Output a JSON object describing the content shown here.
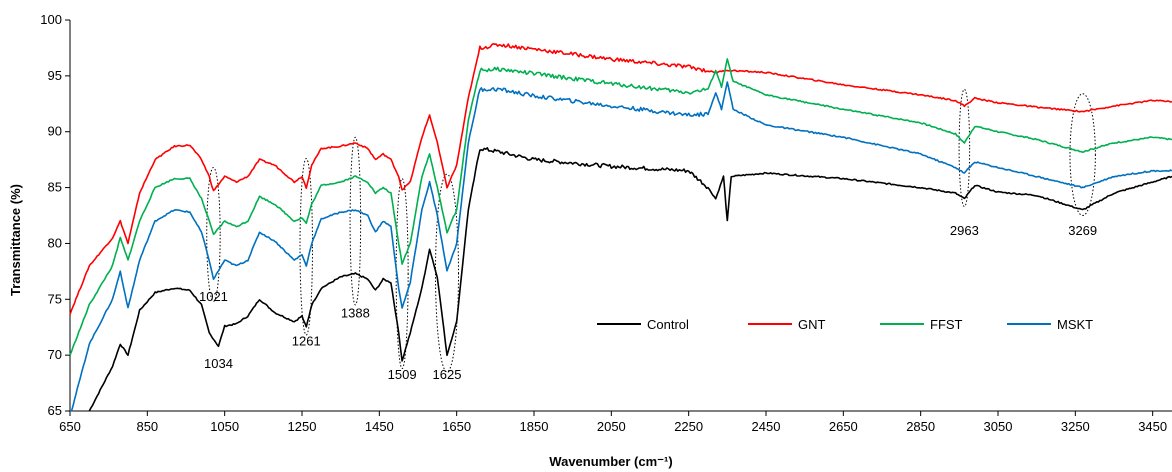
{
  "chart_data": {
    "type": "line",
    "title": "",
    "xlabel": "Wavenumber (cm⁻¹)",
    "ylabel": "Transmittance (%)",
    "xlim": [
      650,
      3500
    ],
    "ylim": [
      65,
      100
    ],
    "x_ticks": [
      650,
      850,
      1050,
      1250,
      1450,
      1650,
      1850,
      2050,
      2250,
      2450,
      2650,
      2850,
      3050,
      3250,
      3450
    ],
    "y_ticks": [
      65,
      70,
      75,
      80,
      85,
      90,
      95,
      100
    ],
    "grid": false,
    "legend_position": "right-center",
    "series": [
      {
        "name": "Control",
        "color": "#000000",
        "points": [
          [
            700,
            65
          ],
          [
            760,
            69
          ],
          [
            780,
            71
          ],
          [
            800,
            70
          ],
          [
            830,
            74
          ],
          [
            870,
            75.6
          ],
          [
            920,
            76
          ],
          [
            960,
            75.8
          ],
          [
            990,
            74.5
          ],
          [
            1010,
            72
          ],
          [
            1034,
            70.8
          ],
          [
            1050,
            72.6
          ],
          [
            1080,
            72.8
          ],
          [
            1110,
            73.5
          ],
          [
            1140,
            75
          ],
          [
            1180,
            73.8
          ],
          [
            1230,
            73
          ],
          [
            1250,
            73.5
          ],
          [
            1261,
            72.5
          ],
          [
            1275,
            74.5
          ],
          [
            1300,
            76
          ],
          [
            1350,
            77
          ],
          [
            1388,
            77.3
          ],
          [
            1420,
            76.8
          ],
          [
            1440,
            75.8
          ],
          [
            1460,
            76.8
          ],
          [
            1480,
            76.5
          ],
          [
            1500,
            72
          ],
          [
            1509,
            69.5
          ],
          [
            1530,
            72
          ],
          [
            1560,
            76
          ],
          [
            1580,
            79.5
          ],
          [
            1600,
            77
          ],
          [
            1625,
            70
          ],
          [
            1650,
            73
          ],
          [
            1680,
            83
          ],
          [
            1710,
            88.5
          ],
          [
            1760,
            88.2
          ],
          [
            1850,
            87.5
          ],
          [
            2050,
            86.9
          ],
          [
            2250,
            86.5
          ],
          [
            2300,
            85
          ],
          [
            2320,
            84
          ],
          [
            2340,
            86
          ],
          [
            2350,
            82
          ],
          [
            2360,
            86
          ],
          [
            2450,
            86.3
          ],
          [
            2650,
            85.8
          ],
          [
            2850,
            85
          ],
          [
            2940,
            84.5
          ],
          [
            2963,
            84
          ],
          [
            2990,
            85.2
          ],
          [
            3050,
            84.6
          ],
          [
            3150,
            84.3
          ],
          [
            3269,
            83
          ],
          [
            3350,
            84.5
          ],
          [
            3450,
            85.5
          ],
          [
            3500,
            86
          ]
        ]
      },
      {
        "name": "GNT",
        "color": "#ff0000",
        "points": [
          [
            650,
            73.7
          ],
          [
            700,
            78
          ],
          [
            760,
            80.5
          ],
          [
            780,
            82
          ],
          [
            800,
            80
          ],
          [
            830,
            84.5
          ],
          [
            870,
            87.5
          ],
          [
            920,
            88.7
          ],
          [
            960,
            88.8
          ],
          [
            990,
            87.5
          ],
          [
            1010,
            86
          ],
          [
            1021,
            84.7
          ],
          [
            1050,
            86
          ],
          [
            1080,
            85.5
          ],
          [
            1110,
            86
          ],
          [
            1140,
            87.5
          ],
          [
            1180,
            87
          ],
          [
            1230,
            85.5
          ],
          [
            1250,
            86
          ],
          [
            1261,
            85
          ],
          [
            1275,
            87
          ],
          [
            1300,
            88.5
          ],
          [
            1350,
            88.7
          ],
          [
            1388,
            89
          ],
          [
            1420,
            88.5
          ],
          [
            1440,
            87.5
          ],
          [
            1460,
            88
          ],
          [
            1480,
            87.5
          ],
          [
            1500,
            86
          ],
          [
            1509,
            84.8
          ],
          [
            1530,
            85.5
          ],
          [
            1560,
            89.5
          ],
          [
            1580,
            91.5
          ],
          [
            1600,
            89
          ],
          [
            1625,
            85
          ],
          [
            1650,
            87
          ],
          [
            1680,
            93
          ],
          [
            1710,
            97.5
          ],
          [
            1760,
            97.8
          ],
          [
            1850,
            97.4
          ],
          [
            2050,
            96.5
          ],
          [
            2250,
            95.8
          ],
          [
            2320,
            95.3
          ],
          [
            2350,
            95.5
          ],
          [
            2450,
            95.3
          ],
          [
            2650,
            94.2
          ],
          [
            2850,
            93.3
          ],
          [
            2940,
            92.8
          ],
          [
            2963,
            92.3
          ],
          [
            2990,
            93
          ],
          [
            3050,
            92.6
          ],
          [
            3150,
            92.2
          ],
          [
            3269,
            91.8
          ],
          [
            3350,
            92.3
          ],
          [
            3450,
            92.8
          ],
          [
            3500,
            92.7
          ]
        ]
      },
      {
        "name": "FFST",
        "color": "#00b050",
        "points": [
          [
            650,
            70
          ],
          [
            700,
            74.5
          ],
          [
            760,
            78
          ],
          [
            780,
            80.5
          ],
          [
            800,
            78.5
          ],
          [
            830,
            82
          ],
          [
            870,
            85
          ],
          [
            920,
            85.8
          ],
          [
            960,
            85.8
          ],
          [
            990,
            84
          ],
          [
            1010,
            82
          ],
          [
            1021,
            80.8
          ],
          [
            1050,
            82
          ],
          [
            1080,
            81.5
          ],
          [
            1110,
            82
          ],
          [
            1140,
            84.2
          ],
          [
            1180,
            83.5
          ],
          [
            1230,
            82
          ],
          [
            1250,
            82.3
          ],
          [
            1261,
            81.8
          ],
          [
            1275,
            83.5
          ],
          [
            1300,
            85.2
          ],
          [
            1350,
            85.5
          ],
          [
            1388,
            86
          ],
          [
            1420,
            85.5
          ],
          [
            1440,
            84.5
          ],
          [
            1460,
            85
          ],
          [
            1480,
            84.5
          ],
          [
            1500,
            80
          ],
          [
            1509,
            78.2
          ],
          [
            1530,
            80
          ],
          [
            1560,
            86
          ],
          [
            1580,
            88
          ],
          [
            1600,
            85
          ],
          [
            1625,
            81
          ],
          [
            1650,
            83
          ],
          [
            1680,
            91
          ],
          [
            1710,
            95.5
          ],
          [
            1760,
            95.6
          ],
          [
            1850,
            95.2
          ],
          [
            2050,
            94.3
          ],
          [
            2250,
            93.5
          ],
          [
            2300,
            93.8
          ],
          [
            2320,
            95.5
          ],
          [
            2335,
            94
          ],
          [
            2350,
            96.5
          ],
          [
            2365,
            94.5
          ],
          [
            2450,
            93.3
          ],
          [
            2650,
            92
          ],
          [
            2850,
            90.8
          ],
          [
            2940,
            89.8
          ],
          [
            2963,
            89
          ],
          [
            2990,
            90.5
          ],
          [
            3050,
            90
          ],
          [
            3150,
            89.3
          ],
          [
            3269,
            88.2
          ],
          [
            3350,
            89
          ],
          [
            3450,
            89.5
          ],
          [
            3500,
            89.3
          ]
        ]
      },
      {
        "name": "MSKT",
        "color": "#0070c0",
        "points": [
          [
            650,
            64.5
          ],
          [
            700,
            71
          ],
          [
            760,
            75
          ],
          [
            780,
            77.5
          ],
          [
            800,
            74.2
          ],
          [
            830,
            78.5
          ],
          [
            870,
            82
          ],
          [
            920,
            83
          ],
          [
            960,
            82.8
          ],
          [
            990,
            81
          ],
          [
            1010,
            78.5
          ],
          [
            1021,
            76.8
          ],
          [
            1050,
            78.5
          ],
          [
            1080,
            78
          ],
          [
            1110,
            78.5
          ],
          [
            1140,
            81
          ],
          [
            1180,
            80.2
          ],
          [
            1230,
            78.5
          ],
          [
            1250,
            79
          ],
          [
            1261,
            78
          ],
          [
            1275,
            80
          ],
          [
            1300,
            82.2
          ],
          [
            1350,
            82.8
          ],
          [
            1388,
            83
          ],
          [
            1420,
            82.5
          ],
          [
            1440,
            81
          ],
          [
            1460,
            82
          ],
          [
            1480,
            81.5
          ],
          [
            1500,
            76
          ],
          [
            1509,
            74.2
          ],
          [
            1530,
            76.5
          ],
          [
            1560,
            83
          ],
          [
            1580,
            85.5
          ],
          [
            1600,
            82.5
          ],
          [
            1625,
            77.5
          ],
          [
            1650,
            80
          ],
          [
            1680,
            89
          ],
          [
            1710,
            93.8
          ],
          [
            1760,
            93.8
          ],
          [
            1850,
            93.2
          ],
          [
            2050,
            92.3
          ],
          [
            2250,
            91.5
          ],
          [
            2300,
            91.6
          ],
          [
            2320,
            93.5
          ],
          [
            2335,
            92
          ],
          [
            2350,
            94.5
          ],
          [
            2365,
            92
          ],
          [
            2450,
            90.6
          ],
          [
            2650,
            89.5
          ],
          [
            2850,
            88
          ],
          [
            2940,
            86.8
          ],
          [
            2963,
            86.3
          ],
          [
            2990,
            87.3
          ],
          [
            3050,
            86.8
          ],
          [
            3150,
            86
          ],
          [
            3269,
            85
          ],
          [
            3350,
            86
          ],
          [
            3450,
            86.5
          ],
          [
            3500,
            86.5
          ]
        ]
      }
    ],
    "annotations": [
      {
        "text": "1021",
        "x": 1021,
        "label_y": 75.3,
        "ellipse_y": [
          74.8,
          86.8
        ],
        "ellipse_halfwidth_x": 28
      },
      {
        "text": "1034",
        "x": 1034,
        "label_y": 69.3
      },
      {
        "text": "1261",
        "x": 1261,
        "label_y": 71.3,
        "ellipse_y": [
          71.8,
          87.6
        ],
        "ellipse_halfwidth_x": 26
      },
      {
        "text": "1388",
        "x": 1388,
        "label_y": 73.8,
        "ellipse_y": [
          74.5,
          89.5
        ],
        "ellipse_halfwidth_x": 22
      },
      {
        "text": "1509",
        "x": 1509,
        "label_y": 68.3,
        "ellipse_y": [
          68.8,
          85.8
        ],
        "ellipse_halfwidth_x": 25
      },
      {
        "text": "1625",
        "x": 1625,
        "label_y": 68.3,
        "ellipse_y": [
          68.5,
          86.2
        ],
        "ellipse_halfwidth_x": 48
      },
      {
        "text": "2963",
        "x": 2963,
        "label_y": 81.2,
        "ellipse_y": [
          83.3,
          93.8
        ],
        "ellipse_halfwidth_x": 22
      },
      {
        "text": "3269",
        "x": 3269,
        "label_y": 81.2,
        "ellipse_y": [
          82.5,
          93.4
        ],
        "ellipse_halfwidth_x": 53
      }
    ]
  }
}
